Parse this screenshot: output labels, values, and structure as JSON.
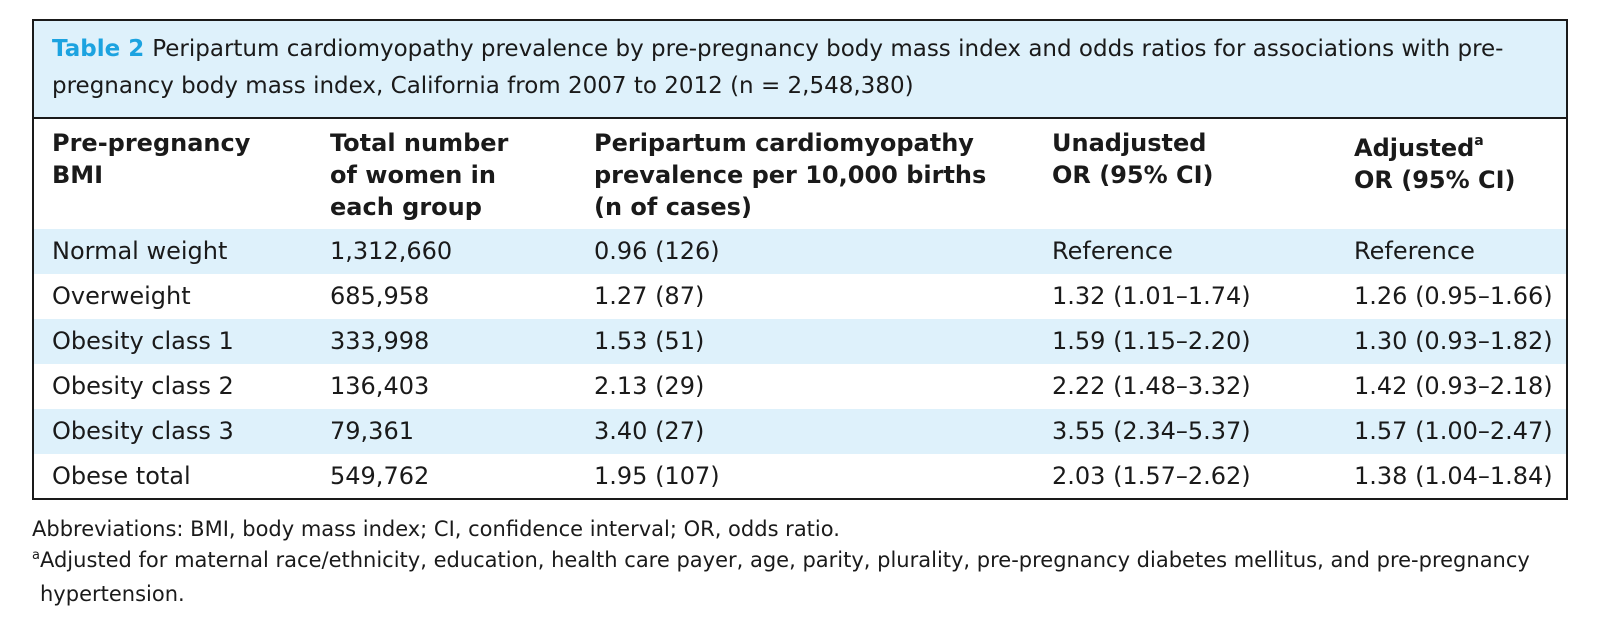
{
  "table": {
    "label": "Table 2",
    "caption": "Peripartum cardiomyopathy prevalence by pre-pregnancy body mass index and odds ratios for associations with pre-pregnancy body mass index, California from 2007 to 2012 (n = 2,548,380)",
    "headers": [
      "Pre-pregnancy\nBMI",
      "Total number\nof women in\neach group",
      "Peripartum cardiomyopathy\nprevalence per 10,000 births\n(n of cases)",
      "Unadjusted\nOR (95% CI)",
      "Adjusted"
    ],
    "header5_sup": "a",
    "header5_line2": "OR (95% CI)",
    "rows": [
      [
        "Normal weight",
        "1,312,660",
        "0.96 (126)",
        "Reference",
        "Reference"
      ],
      [
        "Overweight",
        "685,958",
        "1.27 (87)",
        "1.32 (1.01–1.74)",
        "1.26 (0.95–1.66)"
      ],
      [
        "Obesity class 1",
        "333,998",
        "1.53 (51)",
        "1.59 (1.15–2.20)",
        "1.30 (0.93–1.82)"
      ],
      [
        "Obesity class 2",
        "136,403",
        "2.13 (29)",
        "2.22 (1.48–3.32)",
        "1.42 (0.93–2.18)"
      ],
      [
        "Obesity class 3",
        "79,361",
        "3.40 (27)",
        "3.55 (2.34–5.37)",
        "1.57 (1.00–2.47)"
      ],
      [
        "Obese total",
        "549,762",
        "1.95 (107)",
        "2.03 (1.57–2.62)",
        "1.38 (1.04–1.84)"
      ]
    ]
  },
  "footnotes": {
    "abbreviations": "Abbreviations: BMI, body mass index; CI, confidence interval; OR, odds ratio.",
    "a_mark": "a",
    "a_text": "Adjusted for maternal race/ethnicity, education, health care payer, age, parity, plurality, pre-pregnancy diabetes mellitus, and pre-pregnancy",
    "a_text_cont": "hypertension."
  },
  "colors": {
    "accent": "#1ca3e0",
    "shade": "#def1fb",
    "border": "#1a1a1a"
  }
}
